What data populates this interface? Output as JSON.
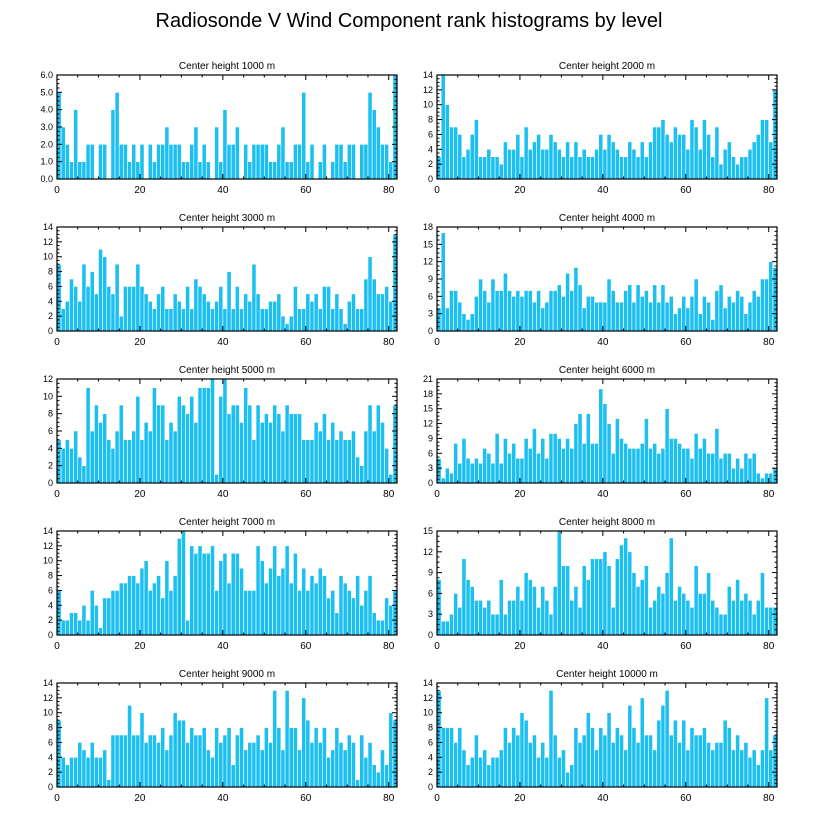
{
  "title": "Radiosonde V Wind Component rank histograms by level",
  "colors": {
    "bar": "#1BBFF0",
    "axis": "#000000"
  },
  "chart_data": [
    {
      "type": "bar",
      "title": "Center height 1000 m",
      "xlim": [
        0,
        82
      ],
      "xticks": [
        0,
        20,
        40,
        60,
        80
      ],
      "ylim": [
        0,
        6
      ],
      "yticks": [
        "0.0",
        "1.0",
        "2.0",
        "3.0",
        "4.0",
        "5.0",
        "6.0"
      ],
      "ytick_values": [
        0,
        1,
        2,
        3,
        4,
        5,
        6
      ],
      "values": [
        5,
        3,
        2,
        1,
        4,
        1,
        1,
        2,
        2,
        0,
        2,
        2,
        0,
        4,
        5,
        2,
        2,
        1,
        2,
        1,
        2,
        0,
        2,
        1,
        2,
        2,
        3,
        2,
        2,
        2,
        1,
        1,
        2,
        3,
        1,
        2,
        1,
        0,
        3,
        1,
        4,
        2,
        2,
        3,
        0,
        2,
        1,
        2,
        2,
        2,
        2,
        1,
        1,
        2,
        3,
        1,
        1,
        2,
        2,
        5,
        1,
        2,
        0,
        1,
        2,
        0,
        1,
        2,
        2,
        1,
        2,
        2,
        0,
        2,
        2,
        5,
        4,
        3,
        2,
        2,
        1,
        6
      ]
    },
    {
      "type": "bar",
      "title": "Center height 2000 m",
      "xlim": [
        0,
        82
      ],
      "xticks": [
        0,
        20,
        40,
        60,
        80
      ],
      "ylim": [
        0,
        14
      ],
      "yticks": [
        "0",
        "2",
        "4",
        "6",
        "8",
        "10",
        "12",
        "14"
      ],
      "ytick_values": [
        0,
        2,
        4,
        6,
        8,
        10,
        12,
        14
      ],
      "values": [
        3,
        14,
        10,
        7,
        7,
        6,
        3,
        4,
        6,
        8,
        3,
        3,
        4,
        3,
        3,
        2,
        5,
        4,
        4,
        6,
        3,
        7,
        4,
        5,
        6,
        4,
        4,
        6,
        5,
        4,
        3,
        5,
        3,
        5,
        3,
        4,
        3,
        3,
        4,
        6,
        4,
        6,
        5,
        4,
        3,
        3,
        5,
        4,
        3,
        5,
        3,
        5,
        7,
        7,
        8,
        6,
        5,
        7,
        6,
        6,
        4,
        8,
        7,
        4,
        8,
        6,
        3,
        7,
        2,
        4,
        5,
        3,
        2,
        3,
        3,
        4,
        5,
        6,
        8,
        8,
        5,
        12
      ]
    },
    {
      "type": "bar",
      "title": "Center height 3000 m",
      "xlim": [
        0,
        82
      ],
      "xticks": [
        0,
        20,
        40,
        60,
        80
      ],
      "ylim": [
        0,
        14
      ],
      "yticks": [
        "0",
        "2",
        "4",
        "6",
        "8",
        "10",
        "12",
        "14"
      ],
      "ytick_values": [
        0,
        2,
        4,
        6,
        8,
        10,
        12,
        14
      ],
      "values": [
        9,
        3,
        4,
        7,
        6,
        4,
        9,
        6,
        8,
        5,
        11,
        10,
        6,
        5,
        9,
        2,
        6,
        6,
        6,
        9,
        6,
        5,
        4,
        3,
        5,
        6,
        3,
        3,
        5,
        4,
        3,
        6,
        3,
        7,
        6,
        5,
        4,
        3,
        4,
        6,
        3,
        8,
        3,
        6,
        3,
        5,
        4,
        9,
        5,
        3,
        3,
        4,
        4,
        5,
        2,
        1,
        2,
        6,
        3,
        3,
        5,
        4,
        5,
        3,
        6,
        6,
        3,
        5,
        3,
        1,
        4,
        5,
        3,
        3,
        7,
        10,
        7,
        5,
        5,
        6,
        4,
        13
      ]
    },
    {
      "type": "bar",
      "title": "Center height 4000 m",
      "xlim": [
        0,
        82
      ],
      "xticks": [
        0,
        20,
        40,
        60,
        80
      ],
      "ylim": [
        0,
        18
      ],
      "yticks": [
        "0",
        "3",
        "6",
        "9",
        "12",
        "15",
        "18"
      ],
      "ytick_values": [
        0,
        3,
        6,
        9,
        12,
        15,
        18
      ],
      "values": [
        4,
        17,
        4,
        7,
        7,
        5,
        3,
        2,
        3,
        6,
        9,
        7,
        5,
        9,
        7,
        7,
        10,
        7,
        6,
        7,
        6,
        7,
        7,
        5,
        7,
        4,
        5,
        7,
        7,
        8,
        6,
        10,
        7,
        11,
        8,
        4,
        6,
        6,
        5,
        5,
        5,
        9,
        7,
        5,
        5,
        7,
        8,
        5,
        8,
        6,
        7,
        5,
        8,
        5,
        8,
        5,
        6,
        3,
        4,
        6,
        4,
        6,
        9,
        3,
        6,
        5,
        2,
        7,
        8,
        4,
        6,
        5,
        7,
        6,
        3,
        5,
        7,
        6,
        9,
        9,
        12,
        11
      ]
    },
    {
      "type": "bar",
      "title": "Center height 5000 m",
      "xlim": [
        0,
        82
      ],
      "xticks": [
        0,
        20,
        40,
        60,
        80
      ],
      "ylim": [
        0,
        12
      ],
      "yticks": [
        "0",
        "2",
        "4",
        "6",
        "8",
        "10",
        "12"
      ],
      "ytick_values": [
        0,
        2,
        4,
        6,
        8,
        10,
        12
      ],
      "values": [
        5,
        4,
        5,
        4,
        6,
        3,
        2,
        11,
        6,
        9,
        7,
        8,
        5,
        4,
        6,
        9,
        5,
        5,
        6,
        10,
        5,
        7,
        6,
        11,
        9,
        9,
        5,
        7,
        6,
        10,
        9,
        8,
        10,
        7,
        11,
        11,
        11,
        12,
        1,
        10,
        12,
        8,
        9,
        9,
        7,
        11,
        9,
        5,
        9,
        7,
        8,
        7,
        9,
        8,
        6,
        9,
        8,
        8,
        8,
        5,
        5,
        5,
        7,
        6,
        8,
        5,
        7,
        5,
        6,
        5,
        5,
        6,
        3,
        2,
        6,
        9,
        6,
        9,
        7,
        4,
        1,
        9
      ]
    },
    {
      "type": "bar",
      "title": "Center height 6000 m",
      "xlim": [
        0,
        82
      ],
      "xticks": [
        0,
        20,
        40,
        60,
        80
      ],
      "ylim": [
        0,
        21
      ],
      "yticks": [
        "0",
        "3",
        "6",
        "9",
        "12",
        "15",
        "18",
        "21"
      ],
      "ytick_values": [
        0,
        3,
        6,
        9,
        12,
        15,
        18,
        21
      ],
      "values": [
        5,
        1,
        3,
        2,
        8,
        4,
        9,
        5,
        4,
        5,
        4,
        7,
        6,
        4,
        10,
        4,
        9,
        6,
        8,
        5,
        5,
        9,
        7,
        11,
        6,
        9,
        5,
        10,
        10,
        9,
        7,
        9,
        7,
        12,
        14,
        8,
        14,
        8,
        8,
        19,
        16,
        12,
        6,
        13,
        9,
        8,
        7,
        7,
        7,
        8,
        13,
        7,
        8,
        6,
        7,
        15,
        9,
        9,
        8,
        7,
        7,
        5,
        10,
        7,
        9,
        6,
        6,
        11,
        5,
        6,
        6,
        3,
        5,
        3,
        6,
        5,
        6,
        2,
        1,
        2,
        2,
        3
      ]
    },
    {
      "type": "bar",
      "title": "Center height 7000 m",
      "xlim": [
        0,
        82
      ],
      "xticks": [
        0,
        20,
        40,
        60,
        80
      ],
      "ylim": [
        0,
        14
      ],
      "yticks": [
        "0",
        "2",
        "4",
        "6",
        "8",
        "10",
        "12",
        "14"
      ],
      "ytick_values": [
        0,
        2,
        4,
        6,
        8,
        10,
        12,
        14
      ],
      "values": [
        6,
        2,
        2,
        3,
        3,
        2,
        4,
        2,
        6,
        4,
        1,
        5,
        5,
        6,
        6,
        7,
        7,
        8,
        8,
        7,
        9,
        10,
        6,
        7,
        8,
        5,
        10,
        6,
        8,
        13,
        14,
        2,
        12,
        11,
        12,
        11,
        11,
        12,
        6,
        10,
        11,
        7,
        11,
        11,
        9,
        6,
        6,
        6,
        12,
        10,
        7,
        9,
        12,
        8,
        9,
        12,
        7,
        11,
        6,
        9,
        6,
        8,
        7,
        9,
        8,
        5,
        6,
        3,
        8,
        7,
        6,
        5,
        8,
        4,
        6,
        8,
        3,
        2,
        2,
        5,
        4,
        6
      ]
    },
    {
      "type": "bar",
      "title": "Center height 8000 m",
      "xlim": [
        0,
        82
      ],
      "xticks": [
        0,
        20,
        40,
        60,
        80
      ],
      "ylim": [
        0,
        15
      ],
      "yticks": [
        "0",
        "3",
        "6",
        "9",
        "12",
        "15"
      ],
      "ytick_values": [
        0,
        3,
        6,
        9,
        12,
        15
      ],
      "values": [
        8,
        2,
        2,
        3,
        6,
        4,
        11,
        8,
        7,
        5,
        5,
        4,
        5,
        3,
        3,
        8,
        3,
        5,
        5,
        7,
        5,
        9,
        8,
        7,
        4,
        7,
        5,
        3,
        7,
        15,
        10,
        10,
        5,
        7,
        4,
        10,
        8,
        11,
        11,
        11,
        12,
        10,
        4,
        11,
        13,
        14,
        12,
        9,
        7,
        8,
        10,
        4,
        5,
        7,
        6,
        9,
        14,
        5,
        7,
        6,
        5,
        4,
        10,
        6,
        6,
        9,
        5,
        4,
        3,
        3,
        7,
        5,
        8,
        5,
        6,
        5,
        3,
        5,
        9,
        4,
        4,
        4
      ]
    },
    {
      "type": "bar",
      "title": "Center height 9000 m",
      "xlim": [
        0,
        82
      ],
      "xticks": [
        0,
        20,
        40,
        60,
        80
      ],
      "ylim": [
        0,
        14
      ],
      "yticks": [
        "0",
        "2",
        "4",
        "6",
        "8",
        "10",
        "12",
        "14"
      ],
      "ytick_values": [
        0,
        2,
        4,
        6,
        8,
        10,
        12,
        14
      ],
      "values": [
        9,
        4,
        3,
        4,
        4,
        6,
        5,
        4,
        6,
        4,
        4,
        5,
        1,
        7,
        7,
        7,
        7,
        11,
        7,
        7,
        10,
        6,
        7,
        7,
        6,
        8,
        5,
        7,
        10,
        9,
        9,
        6,
        8,
        7,
        7,
        8,
        5,
        4,
        8,
        6,
        7,
        8,
        3,
        7,
        8,
        5,
        6,
        6,
        7,
        5,
        8,
        6,
        13,
        8,
        5,
        13,
        8,
        8,
        5,
        12,
        9,
        6,
        8,
        6,
        8,
        4,
        5,
        8,
        6,
        5,
        7,
        6,
        1,
        7,
        4,
        6,
        3,
        2,
        5,
        3,
        10,
        9
      ]
    },
    {
      "type": "bar",
      "title": "Center height 10000 m",
      "xlim": [
        0,
        82
      ],
      "xticks": [
        0,
        20,
        40,
        60,
        80
      ],
      "ylim": [
        0,
        14
      ],
      "yticks": [
        "0",
        "2",
        "4",
        "6",
        "8",
        "10",
        "12",
        "14"
      ],
      "ytick_values": [
        0,
        2,
        4,
        6,
        8,
        10,
        12,
        14
      ],
      "values": [
        13,
        8,
        8,
        8,
        6,
        8,
        5,
        3,
        4,
        7,
        4,
        5,
        3,
        4,
        4,
        5,
        8,
        6,
        8,
        7,
        10,
        9,
        6,
        7,
        4,
        6,
        4,
        13,
        7,
        4,
        5,
        2,
        3,
        8,
        6,
        7,
        10,
        8,
        5,
        8,
        7,
        10,
        6,
        8,
        7,
        5,
        11,
        8,
        6,
        12,
        7,
        7,
        5,
        9,
        11,
        13,
        7,
        9,
        6,
        9,
        5,
        8,
        7,
        7,
        8,
        6,
        5,
        6,
        6,
        9,
        8,
        5,
        7,
        5,
        6,
        4,
        5,
        3,
        5,
        12,
        5,
        7
      ]
    }
  ]
}
